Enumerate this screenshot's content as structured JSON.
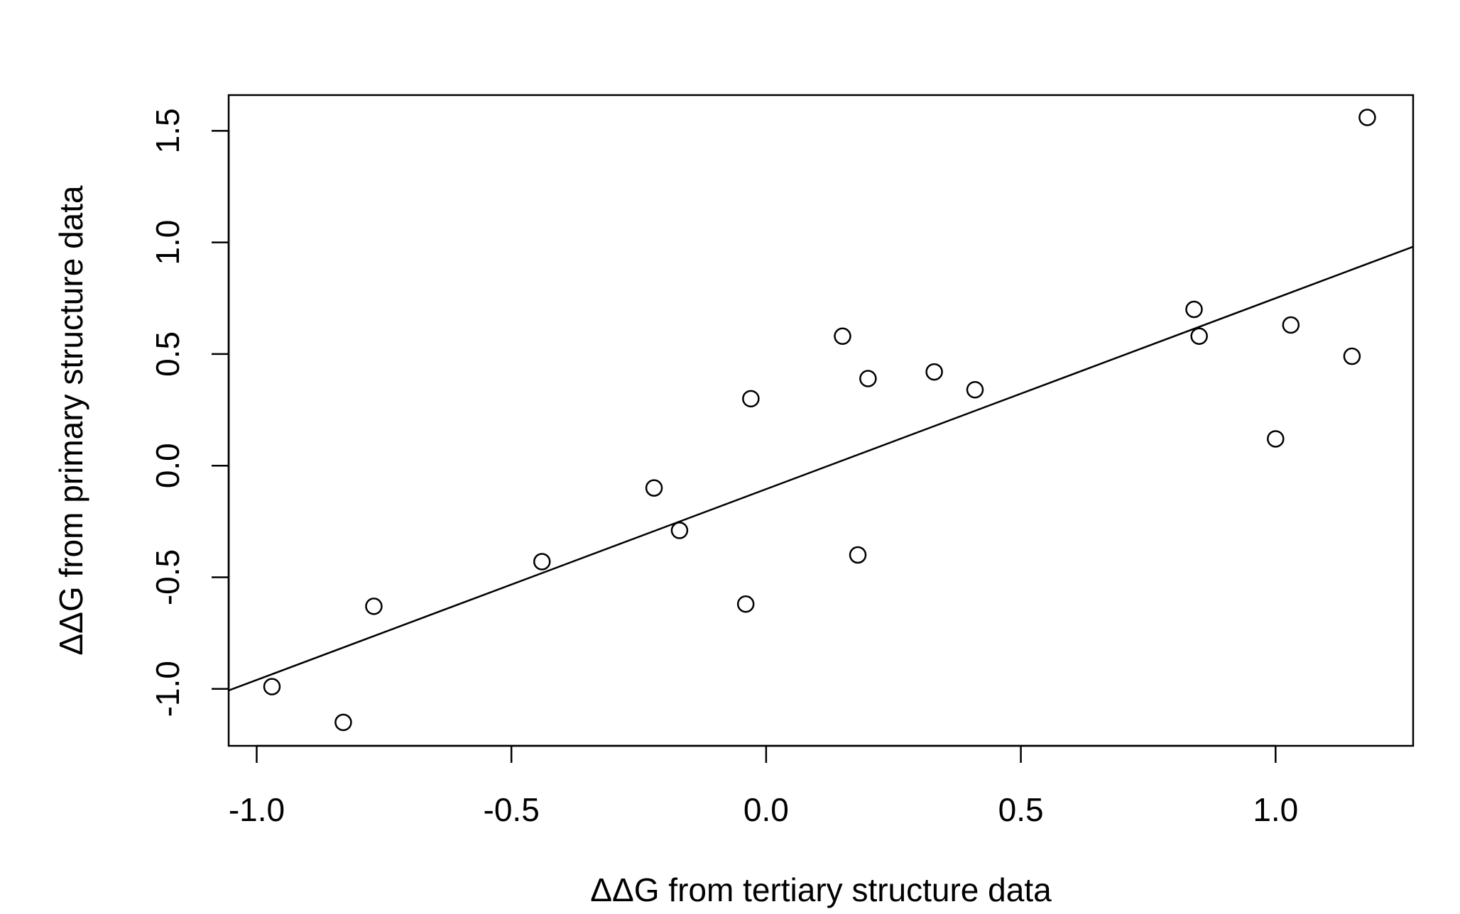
{
  "chart_data": {
    "type": "scatter",
    "title": "",
    "xlabel": "ΔΔG from tertiary structure data",
    "ylabel": "ΔΔG from primary structure data",
    "xlim": [
      -1.055,
      1.27
    ],
    "ylim": [
      -1.255,
      1.66
    ],
    "x_ticks": [
      -1.0,
      -0.5,
      0.0,
      0.5,
      1.0
    ],
    "x_tick_labels": [
      "-1.0",
      "-0.5",
      "0.0",
      "0.5",
      "1.0"
    ],
    "y_ticks": [
      -1.0,
      -0.5,
      0.0,
      0.5,
      1.0,
      1.5
    ],
    "y_tick_labels": [
      "-1.0",
      "-0.5",
      "0.0",
      "0.5",
      "1.0",
      "1.5"
    ],
    "grid": false,
    "legend": "none",
    "marker": "open-circle",
    "colors": {
      "points": "#000000",
      "line": "#000000",
      "frame": "#000000"
    },
    "points": [
      {
        "x": -0.97,
        "y": -0.99
      },
      {
        "x": -0.83,
        "y": -1.15
      },
      {
        "x": -0.77,
        "y": -0.63
      },
      {
        "x": -0.44,
        "y": -0.43
      },
      {
        "x": -0.22,
        "y": -0.1
      },
      {
        "x": -0.17,
        "y": -0.29
      },
      {
        "x": -0.04,
        "y": -0.62
      },
      {
        "x": -0.03,
        "y": 0.3
      },
      {
        "x": 0.15,
        "y": 0.58
      },
      {
        "x": 0.18,
        "y": -0.4
      },
      {
        "x": 0.2,
        "y": 0.39
      },
      {
        "x": 0.33,
        "y": 0.42
      },
      {
        "x": 0.41,
        "y": 0.34
      },
      {
        "x": 0.84,
        "y": 0.7
      },
      {
        "x": 0.85,
        "y": 0.58
      },
      {
        "x": 1.0,
        "y": 0.12
      },
      {
        "x": 1.03,
        "y": 0.63
      },
      {
        "x": 1.15,
        "y": 0.49
      },
      {
        "x": 1.18,
        "y": 1.56
      }
    ],
    "fit_line": {
      "intercept": -0.105,
      "slope": 0.855
    }
  }
}
